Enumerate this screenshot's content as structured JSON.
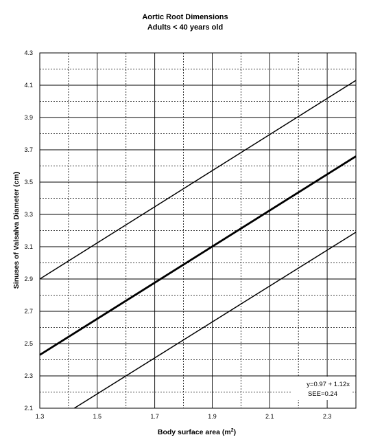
{
  "chart_data": {
    "type": "line",
    "title": "Aortic Root Dimensions",
    "subtitle": "Adults < 40 years old",
    "xlabel": "Body surface area (m",
    "xlabel_sup": "2",
    "xlabel_end": ")",
    "ylabel": "Sinuses of Valsalva Diameter (cm)",
    "xlim": [
      1.3,
      2.4
    ],
    "ylim": [
      2.1,
      4.3
    ],
    "x_ticks": [
      "1.3",
      "1.5",
      "1.7",
      "1.9",
      "2.1",
      "2.3"
    ],
    "y_ticks": [
      "2.1",
      "2.3",
      "2.5",
      "2.7",
      "2.9",
      "3.1",
      "3.3",
      "3.5",
      "3.7",
      "3.9",
      "4.1",
      "4.3"
    ],
    "grid": true,
    "series": [
      {
        "points": [
          [
            1.3,
            2.9
          ],
          [
            2.4,
            4.13
          ]
        ],
        "weight": "normal"
      },
      {
        "points": [
          [
            1.3,
            2.43
          ],
          [
            2.4,
            3.66
          ]
        ],
        "weight": "bold"
      },
      {
        "points": [
          [
            1.42,
            2.1
          ],
          [
            2.4,
            3.19
          ]
        ],
        "weight": "normal"
      }
    ],
    "annotations": [
      "y=0.97 + 1.12x",
      "SEE=0.24"
    ]
  }
}
